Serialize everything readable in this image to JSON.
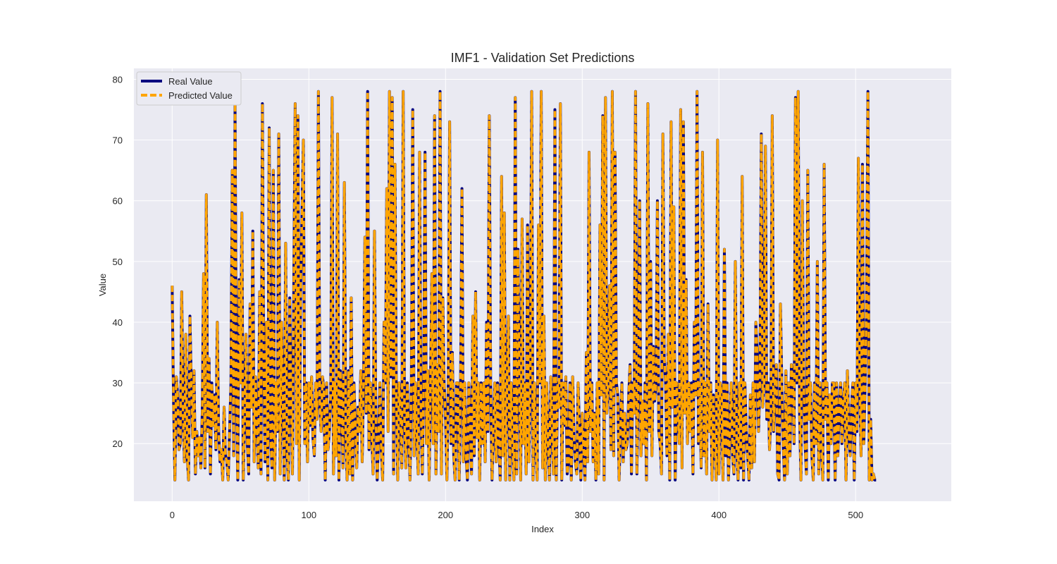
{
  "chart_data": {
    "type": "line",
    "title": "IMF1 - Validation Set Predictions",
    "xlabel": "Index",
    "ylabel": "Value",
    "xlim": [
      -28,
      570
    ],
    "ylim": [
      10.5,
      81.8
    ],
    "xticks": [
      0,
      100,
      200,
      300,
      400,
      500
    ],
    "yticks": [
      20,
      30,
      40,
      50,
      60,
      70,
      80
    ],
    "grid": true,
    "legend_position": "top-left",
    "x_start": 0,
    "x_step": 1,
    "series": [
      {
        "name": "Real Value",
        "color": "#00007f",
        "style": "solid",
        "values": [
          46,
          27,
          14,
          31,
          28,
          19,
          20,
          45,
          24,
          17,
          38,
          18,
          14,
          41,
          30,
          21,
          32,
          15,
          22,
          18,
          21,
          16,
          25,
          48,
          16,
          61,
          22,
          34,
          15,
          30,
          23,
          28,
          19,
          40,
          22,
          17,
          19,
          14,
          26,
          18,
          17,
          14,
          22,
          30,
          65,
          18,
          76,
          28,
          14,
          47,
          30,
          58,
          14,
          24,
          38,
          20,
          15,
          43,
          26,
          55,
          17,
          31,
          23,
          16,
          45,
          15,
          76,
          33,
          17,
          40,
          14,
          72,
          22,
          16,
          65,
          14,
          30,
          22,
          71,
          15,
          40,
          28,
          14,
          53,
          19,
          14,
          44,
          28,
          15,
          47,
          76,
          20,
          74,
          14,
          46,
          58,
          70,
          20,
          30,
          17,
          30,
          23,
          31,
          21,
          18,
          30,
          24,
          78,
          27,
          22,
          31,
          29,
          14,
          30,
          19,
          22,
          28,
          77,
          15,
          30,
          18,
          71,
          14,
          32,
          27,
          16,
          63,
          22,
          14,
          32,
          15,
          44,
          14,
          30,
          23,
          16,
          26,
          22,
          32,
          17,
          30,
          54,
          25,
          78,
          19,
          30,
          22,
          15,
          55,
          25,
          14,
          21,
          30,
          19,
          14,
          40,
          30,
          62,
          22,
          78,
          31,
          77,
          15,
          66,
          28,
          14,
          30,
          25,
          16,
          78,
          24,
          16,
          30,
          22,
          14,
          30,
          75,
          18,
          30,
          22,
          15,
          68,
          26,
          15,
          30,
          68,
          20,
          32,
          14,
          30,
          48,
          20,
          74,
          15,
          33,
          22,
          78,
          15,
          44,
          30,
          24,
          14,
          30,
          73,
          20,
          35,
          18,
          14,
          30,
          30,
          14,
          30,
          62,
          17,
          30,
          18,
          14,
          30,
          23,
          15,
          41,
          18,
          45,
          21,
          30,
          14,
          30,
          20,
          30,
          17,
          40,
          22,
          74,
          30,
          14,
          23,
          30,
          17,
          30,
          20,
          14,
          64,
          18,
          58,
          14,
          30,
          41,
          14,
          30,
          20,
          14,
          77,
          15,
          52,
          30,
          14,
          57,
          20,
          30,
          15,
          56,
          17,
          30,
          78,
          14,
          30,
          20,
          14,
          56,
          30,
          78,
          16,
          41,
          14,
          30,
          20,
          14,
          31,
          22,
          15,
          75,
          14,
          30,
          26,
          76,
          14,
          30,
          23,
          31,
          15,
          17,
          30,
          14,
          31,
          21,
          17,
          15,
          30,
          22,
          14,
          25,
          19,
          14,
          35,
          17,
          68,
          22,
          30,
          17,
          25,
          14,
          30,
          15,
          56,
          28,
          74,
          14,
          77,
          25,
          30,
          46,
          19,
          78,
          18,
          68,
          30,
          28,
          14,
          23,
          30,
          17,
          25,
          19,
          20,
          28,
          33,
          15,
          30,
          25,
          78,
          15,
          30,
          60,
          18,
          27,
          20,
          30,
          14,
          76,
          22,
          50,
          18,
          36,
          27,
          30,
          60,
          22,
          20,
          15,
          71,
          34,
          30,
          18,
          38,
          14,
          73,
          26,
          59,
          14,
          30,
          25,
          20,
          75,
          16,
          73,
          25,
          47,
          20,
          30,
          22,
          30,
          15,
          40,
          28,
          78,
          20,
          30,
          16,
          68,
          18,
          30,
          15,
          43,
          22,
          30,
          14,
          28,
          20,
          14,
          70,
          15,
          30,
          28,
          14,
          52,
          18,
          30,
          14,
          22,
          30,
          18,
          15,
          50,
          20,
          14,
          30,
          16,
          64,
          14,
          30,
          22,
          18,
          14,
          28,
          16,
          30,
          17,
          40,
          35,
          22,
          30,
          71,
          26,
          30,
          69,
          24,
          30,
          19,
          24,
          74,
          22,
          30,
          33,
          15,
          14,
          43,
          30,
          20,
          14,
          32,
          15,
          30,
          18,
          33,
          30,
          20,
          77,
          30,
          78,
          25,
          14,
          60,
          30,
          20,
          15,
          65,
          24,
          30,
          18,
          14,
          30,
          20,
          50,
          15,
          30,
          19,
          14,
          66,
          24,
          30,
          14,
          28,
          20,
          30,
          30,
          14,
          30,
          18,
          26,
          30,
          20,
          27,
          30,
          14,
          32,
          22,
          18,
          26,
          30,
          14,
          30,
          22,
          67,
          30,
          18,
          66,
          20,
          30,
          42,
          78,
          14,
          24,
          14,
          15,
          14,
          14
        ]
      },
      {
        "name": "Predicted Value",
        "color": "#ffa500",
        "style": "dashed",
        "values": [
          46,
          27,
          14,
          31,
          28,
          19,
          20,
          45,
          24,
          17,
          38,
          18,
          14,
          41,
          30,
          21,
          32,
          15,
          22,
          18,
          21,
          16,
          25,
          48,
          16,
          61,
          22,
          34,
          15,
          30,
          23,
          28,
          19,
          40,
          22,
          17,
          19,
          14,
          26,
          18,
          17,
          14,
          22,
          30,
          65,
          18,
          76,
          28,
          14,
          47,
          30,
          58,
          14,
          24,
          38,
          20,
          15,
          43,
          26,
          55,
          17,
          31,
          23,
          16,
          45,
          15,
          76,
          33,
          17,
          40,
          14,
          72,
          22,
          16,
          65,
          14,
          30,
          22,
          71,
          15,
          40,
          28,
          14,
          53,
          19,
          14,
          44,
          28,
          15,
          47,
          76,
          20,
          74,
          14,
          46,
          58,
          70,
          20,
          30,
          17,
          30,
          23,
          31,
          21,
          18,
          30,
          24,
          78,
          27,
          22,
          31,
          29,
          14,
          30,
          19,
          22,
          28,
          77,
          15,
          30,
          18,
          71,
          14,
          32,
          27,
          16,
          63,
          22,
          14,
          32,
          15,
          44,
          14,
          30,
          23,
          16,
          26,
          22,
          32,
          17,
          30,
          54,
          25,
          78,
          19,
          30,
          22,
          15,
          55,
          25,
          14,
          21,
          30,
          19,
          14,
          40,
          30,
          62,
          22,
          78,
          31,
          77,
          15,
          66,
          28,
          14,
          30,
          25,
          16,
          78,
          24,
          16,
          30,
          22,
          14,
          30,
          75,
          18,
          30,
          22,
          15,
          68,
          26,
          15,
          30,
          68,
          20,
          32,
          14,
          30,
          48,
          20,
          74,
          15,
          33,
          22,
          78,
          15,
          44,
          30,
          24,
          14,
          30,
          73,
          20,
          35,
          18,
          14,
          30,
          30,
          14,
          30,
          62,
          17,
          30,
          18,
          14,
          30,
          23,
          15,
          41,
          18,
          45,
          21,
          30,
          14,
          30,
          20,
          30,
          17,
          40,
          22,
          74,
          30,
          14,
          23,
          30,
          17,
          30,
          20,
          14,
          64,
          18,
          58,
          14,
          30,
          41,
          14,
          30,
          20,
          14,
          77,
          15,
          52,
          30,
          14,
          57,
          20,
          30,
          15,
          56,
          17,
          30,
          78,
          14,
          30,
          20,
          14,
          56,
          30,
          78,
          16,
          41,
          14,
          30,
          20,
          14,
          31,
          22,
          15,
          75,
          14,
          30,
          26,
          76,
          14,
          30,
          23,
          31,
          15,
          17,
          30,
          14,
          31,
          21,
          17,
          15,
          30,
          22,
          14,
          25,
          19,
          14,
          35,
          17,
          68,
          22,
          30,
          17,
          25,
          14,
          30,
          15,
          56,
          28,
          74,
          14,
          77,
          25,
          30,
          46,
          19,
          78,
          18,
          68,
          30,
          28,
          14,
          23,
          30,
          17,
          25,
          19,
          20,
          28,
          33,
          15,
          30,
          25,
          78,
          15,
          30,
          60,
          18,
          27,
          20,
          30,
          14,
          76,
          22,
          50,
          18,
          36,
          27,
          30,
          60,
          22,
          20,
          15,
          71,
          34,
          30,
          18,
          38,
          14,
          73,
          26,
          59,
          14,
          30,
          25,
          20,
          75,
          16,
          73,
          25,
          47,
          20,
          30,
          22,
          30,
          15,
          40,
          28,
          78,
          20,
          30,
          16,
          68,
          18,
          30,
          15,
          43,
          22,
          30,
          14,
          28,
          20,
          14,
          70,
          15,
          30,
          28,
          14,
          52,
          18,
          30,
          14,
          22,
          30,
          18,
          15,
          50,
          20,
          14,
          30,
          16,
          64,
          14,
          30,
          22,
          18,
          14,
          28,
          16,
          30,
          17,
          40,
          35,
          22,
          30,
          71,
          26,
          30,
          69,
          24,
          30,
          19,
          24,
          74,
          22,
          30,
          33,
          15,
          14,
          43,
          30,
          20,
          14,
          32,
          15,
          30,
          18,
          33,
          30,
          20,
          77,
          30,
          78,
          25,
          14,
          60,
          30,
          20,
          15,
          65,
          24,
          30,
          18,
          14,
          30,
          20,
          50,
          15,
          30,
          19,
          14,
          66,
          24,
          30,
          14,
          28,
          20,
          30,
          30,
          14,
          30,
          18,
          26,
          30,
          20,
          27,
          30,
          14,
          32,
          22,
          18,
          26,
          30,
          14,
          30,
          22,
          67,
          30,
          18,
          66,
          20,
          30,
          42,
          78,
          14,
          24,
          14,
          15,
          14,
          14
        ]
      }
    ]
  },
  "colors": {
    "figure_background": "#ffffff",
    "plot_background": "#eaeaf2",
    "grid": "#ffffff",
    "text": "#262626"
  }
}
